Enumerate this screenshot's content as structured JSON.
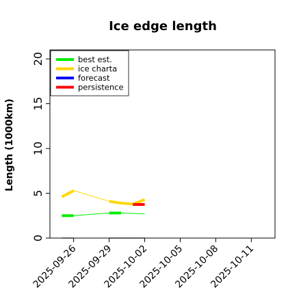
{
  "chart_data": {
    "type": "line",
    "title": "Ice edge length",
    "ylabel": "Length (1000km)",
    "xlabel": "",
    "ylim": [
      0,
      21
    ],
    "yticks": [
      0,
      5,
      10,
      15,
      20
    ],
    "xlim": [
      "2025-09-24",
      "2025-10-13"
    ],
    "xticks": [
      {
        "date": "2025-09-26",
        "label": "2025-09-26",
        "color": "#000000"
      },
      {
        "date": "2025-09-29",
        "label": "2025-09-29",
        "color": "#000000"
      },
      {
        "date": "2025-10-02",
        "label": "2025-10-02",
        "color": "#228B22"
      },
      {
        "date": "2025-10-05",
        "label": "2025-10-05",
        "color": "#000000"
      },
      {
        "date": "2025-10-08",
        "label": "2025-10-08",
        "color": "#000000"
      },
      {
        "date": "2025-10-11",
        "label": "2025-10-11",
        "color": "#000000"
      }
    ],
    "legend": {
      "placement": "top-left"
    },
    "series": [
      {
        "name": "best est.",
        "color": "#00ee00",
        "points": [
          [
            "2025-09-25",
            2.5
          ],
          [
            "2025-09-26",
            2.5
          ],
          [
            "2025-09-29",
            2.8
          ],
          [
            "2025-09-30",
            2.8
          ],
          [
            "2025-10-02",
            2.7
          ]
        ]
      },
      {
        "name": "ice charta",
        "color": "#ffd700",
        "points": [
          [
            "2025-09-25",
            4.6
          ],
          [
            "2025-09-26",
            5.3
          ],
          [
            "2025-09-29",
            4.1
          ],
          [
            "2025-09-30",
            3.9
          ],
          [
            "2025-10-01",
            3.8
          ],
          [
            "2025-10-02",
            4.3
          ]
        ]
      },
      {
        "name": "forecast",
        "color": "#0000ff",
        "points": []
      },
      {
        "name": "persistence",
        "color": "#ff0000",
        "points": [
          [
            "2025-10-01",
            3.75
          ],
          [
            "2025-10-02",
            3.75
          ]
        ]
      }
    ],
    "zero_segments": [
      [
        "2025-09-25",
        "2025-09-26"
      ],
      [
        "2025-09-29",
        "2025-10-02"
      ]
    ]
  }
}
